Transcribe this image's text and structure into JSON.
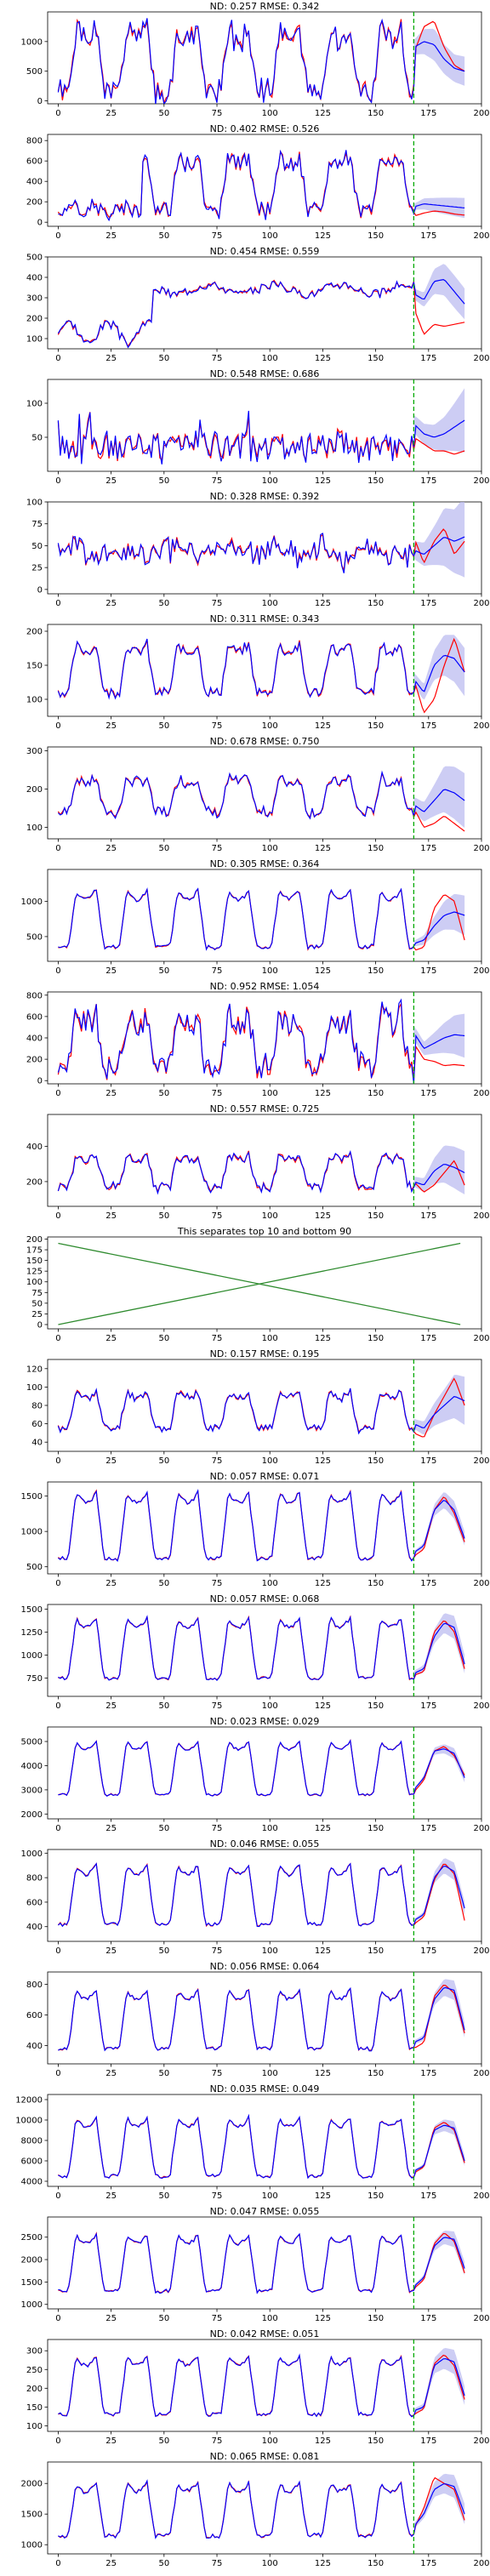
{
  "figure": {
    "background": "#ffffff",
    "colors": {
      "prediction": "#0000ff",
      "actual": "#ff0000",
      "band": "#b8b8f0",
      "divider": "#00aa00",
      "separator_line": "#2e8b2e"
    }
  },
  "chart_data": [
    {
      "type": "line",
      "title": "ND:  0.257 RMSE:  0.342",
      "xlim": [
        -5,
        200
      ],
      "ylim": [
        -50,
        1500
      ],
      "yticks": [
        0,
        500,
        1000
      ],
      "xticks": [
        0,
        25,
        50,
        75,
        100,
        125,
        150,
        175,
        200
      ],
      "cutoff": 168,
      "pattern": "daily",
      "low": 150,
      "high": 1200,
      "noise": 0.18,
      "fc_mean": [
        900,
        1000,
        950,
        700,
        550,
        500
      ],
      "fc_spread": 0.35,
      "actual_fc": [
        800,
        1250,
        1350,
        900,
        600,
        500
      ],
      "seed": 1
    },
    {
      "type": "line",
      "title": "ND:  0.402 RMSE:  0.526",
      "xlim": [
        -5,
        200
      ],
      "ylim": [
        -40,
        860
      ],
      "yticks": [
        0,
        200,
        400,
        600,
        800
      ],
      "xticks": [
        0,
        25,
        50,
        75,
        100,
        125,
        150,
        175,
        200
      ],
      "cutoff": 168,
      "pattern": "daily_late",
      "start_active": 40,
      "low": 120,
      "high": 650,
      "noise": 0.15,
      "fc_mean": [
        150,
        180,
        170,
        160,
        150,
        140
      ],
      "fc_spread": 0.5,
      "actual_fc": [
        60,
        90,
        110,
        100,
        80,
        70
      ],
      "seed": 2
    },
    {
      "type": "line",
      "title": "ND:  0.454 RMSE:  0.559",
      "xlim": [
        -5,
        200
      ],
      "ylim": [
        50,
        500
      ],
      "yticks": [
        100,
        200,
        300,
        400,
        500
      ],
      "xticks": [
        0,
        25,
        50,
        75,
        100,
        125,
        150,
        175,
        200
      ],
      "cutoff": 168,
      "pattern": "level",
      "start_active": 45,
      "low": 130,
      "high": 380,
      "noise": 0.08,
      "fc_mean": [
        320,
        290,
        380,
        390,
        330,
        270
      ],
      "fc_spread": 0.2,
      "actual_fc": [
        250,
        120,
        170,
        160,
        170,
        180
      ],
      "seed": 3
    },
    {
      "type": "line",
      "title": "ND:  0.548 RMSE:  0.686",
      "xlim": [
        -5,
        200
      ],
      "ylim": [
        0,
        135
      ],
      "yticks": [
        50,
        100
      ],
      "xticks": [
        0,
        25,
        50,
        75,
        100,
        125,
        150,
        175,
        200
      ],
      "cutoff": 168,
      "pattern": "spiky",
      "low": 25,
      "high": 80,
      "noise": 0.35,
      "fc_mean": [
        70,
        55,
        50,
        55,
        65,
        75
      ],
      "fc_spread": 0.45,
      "actual_fc": [
        50,
        40,
        30,
        30,
        25,
        30
      ],
      "seed": 4
    },
    {
      "type": "line",
      "title": "ND:  0.328 RMSE:  0.392",
      "xlim": [
        -5,
        200
      ],
      "ylim": [
        -5,
        100
      ],
      "yticks": [
        0,
        25,
        50,
        75,
        100
      ],
      "xticks": [
        0,
        25,
        50,
        75,
        100,
        125,
        150,
        175,
        200
      ],
      "cutoff": 168,
      "pattern": "noisy",
      "low": 30,
      "high": 55,
      "noise": 0.35,
      "fc_mean": [
        45,
        40,
        50,
        60,
        55,
        60
      ],
      "fc_spread": 0.55,
      "actual_fc": [
        60,
        30,
        55,
        70,
        40,
        55
      ],
      "seed": 5
    },
    {
      "type": "line",
      "title": "ND:  0.311 RMSE:  0.343",
      "xlim": [
        -5,
        200
      ],
      "ylim": [
        75,
        210
      ],
      "yticks": [
        100,
        150,
        200
      ],
      "xticks": [
        0,
        25,
        50,
        75,
        100,
        125,
        150,
        175,
        200
      ],
      "cutoff": 168,
      "pattern": "daily",
      "low": 110,
      "high": 180,
      "noise": 0.1,
      "fc_mean": [
        130,
        110,
        150,
        165,
        160,
        140
      ],
      "fc_spread": 0.18,
      "actual_fc": [
        130,
        80,
        100,
        150,
        190,
        140
      ],
      "seed": 6
    },
    {
      "type": "line",
      "title": "ND:  0.678 RMSE:  0.750",
      "xlim": [
        -5,
        200
      ],
      "ylim": [
        70,
        310
      ],
      "yticks": [
        100,
        200,
        300
      ],
      "xticks": [
        0,
        25,
        50,
        75,
        100,
        125,
        150,
        175,
        200
      ],
      "cutoff": 168,
      "pattern": "daily",
      "low": 140,
      "high": 230,
      "noise": 0.15,
      "fc_mean": [
        160,
        140,
        170,
        200,
        190,
        170
      ],
      "fc_spread": 0.3,
      "actual_fc": [
        150,
        100,
        110,
        130,
        110,
        90
      ],
      "seed": 7
    },
    {
      "type": "line",
      "title": "ND:  0.305 RMSE:  0.364",
      "xlim": [
        -5,
        200
      ],
      "ylim": [
        150,
        1450
      ],
      "yticks": [
        500,
        1000
      ],
      "xticks": [
        0,
        25,
        50,
        75,
        100,
        125,
        150,
        175,
        200
      ],
      "cutoff": 168,
      "pattern": "daily_smooth",
      "low": 350,
      "high": 1150,
      "noise": 0.04,
      "fc_mean": [
        400,
        450,
        650,
        800,
        850,
        800
      ],
      "fc_spread": 0.25,
      "actual_fc": [
        300,
        350,
        900,
        1100,
        1000,
        450
      ],
      "seed": 8
    },
    {
      "type": "line",
      "title": "ND:  0.952 RMSE:  1.054",
      "xlim": [
        -5,
        200
      ],
      "ylim": [
        -30,
        830
      ],
      "yticks": [
        0,
        200,
        400,
        600,
        800
      ],
      "xticks": [
        0,
        25,
        50,
        75,
        100,
        125,
        150,
        175,
        200
      ],
      "cutoff": 168,
      "pattern": "daily",
      "low": 120,
      "high": 600,
      "noise": 0.25,
      "fc_mean": [
        450,
        300,
        350,
        400,
        430,
        420
      ],
      "fc_spread": 0.35,
      "actual_fc": [
        350,
        200,
        180,
        140,
        150,
        140
      ],
      "seed": 9
    },
    {
      "type": "line",
      "title": "ND:  0.557 RMSE:  0.725",
      "xlim": [
        -5,
        200
      ],
      "ylim": [
        60,
        580
      ],
      "yticks": [
        200,
        400
      ],
      "xticks": [
        0,
        25,
        50,
        75,
        100,
        125,
        150,
        175,
        200
      ],
      "cutoff": 168,
      "pattern": "daily",
      "low": 170,
      "high": 350,
      "noise": 0.15,
      "fc_mean": [
        200,
        180,
        260,
        300,
        280,
        250
      ],
      "fc_spread": 0.35,
      "actual_fc": [
        200,
        140,
        180,
        250,
        320,
        180
      ],
      "seed": 10
    },
    {
      "type": "line",
      "title": "This separates top 10 and bottom 90",
      "xlim": [
        -5,
        200
      ],
      "ylim": [
        -10,
        205
      ],
      "yticks": [
        0,
        25,
        50,
        75,
        100,
        125,
        150,
        175,
        200
      ],
      "xticks": [
        0,
        25,
        50,
        75,
        100,
        125,
        150,
        175,
        200
      ],
      "separator": true,
      "series": [
        {
          "x": [
            0,
            190
          ],
          "y": [
            190,
            0
          ]
        },
        {
          "x": [
            0,
            190
          ],
          "y": [
            0,
            190
          ]
        }
      ]
    },
    {
      "type": "line",
      "title": "ND:  0.157 RMSE:  0.195",
      "xlim": [
        -5,
        200
      ],
      "ylim": [
        30,
        130
      ],
      "yticks": [
        40,
        60,
        80,
        100,
        120
      ],
      "xticks": [
        0,
        25,
        50,
        75,
        100,
        125,
        150,
        175,
        200
      ],
      "cutoff": 168,
      "pattern": "daily",
      "low": 55,
      "high": 95,
      "noise": 0.1,
      "fc_mean": [
        60,
        55,
        70,
        80,
        90,
        85
      ],
      "fc_spread": 0.22,
      "actual_fc": [
        50,
        45,
        70,
        90,
        110,
        80
      ],
      "seed": 11
    },
    {
      "type": "line",
      "title": "ND:  0.057 RMSE:  0.071",
      "xlim": [
        -5,
        200
      ],
      "ylim": [
        400,
        1700
      ],
      "yticks": [
        500,
        1000,
        1500
      ],
      "xticks": [
        0,
        25,
        50,
        75,
        100,
        125,
        150,
        175,
        200
      ],
      "cutoff": 168,
      "pattern": "daily_clean",
      "low": 620,
      "high": 1550,
      "noise": 0.03,
      "fc_mean": [
        700,
        800,
        1300,
        1450,
        1300,
        900
      ],
      "fc_spread": 0.08,
      "actual_fc": [
        650,
        750,
        1300,
        1500,
        1250,
        850
      ],
      "seed": 12
    },
    {
      "type": "line",
      "title": "ND:  0.057 RMSE:  0.068",
      "xlim": [
        -5,
        200
      ],
      "ylim": [
        550,
        1550
      ],
      "yticks": [
        750,
        1000,
        1250,
        1500
      ],
      "xticks": [
        0,
        25,
        50,
        75,
        100,
        125,
        150,
        175,
        200
      ],
      "cutoff": 168,
      "pattern": "daily_clean",
      "low": 750,
      "high": 1400,
      "noise": 0.03,
      "fc_mean": [
        800,
        850,
        1200,
        1350,
        1300,
        900
      ],
      "fc_spread": 0.08,
      "actual_fc": [
        780,
        820,
        1250,
        1380,
        1250,
        850
      ],
      "seed": 13
    },
    {
      "type": "line",
      "title": "ND:  0.023 RMSE:  0.029",
      "xlim": [
        -5,
        200
      ],
      "ylim": [
        1800,
        5600
      ],
      "yticks": [
        2000,
        3000,
        4000,
        5000
      ],
      "xticks": [
        0,
        25,
        50,
        75,
        100,
        125,
        150,
        175,
        200
      ],
      "cutoff": 168,
      "pattern": "daily_clean",
      "low": 2800,
      "high": 5000,
      "noise": 0.02,
      "fc_mean": [
        3000,
        3500,
        4600,
        4700,
        4500,
        3500
      ],
      "fc_spread": 0.04,
      "actual_fc": [
        2900,
        3400,
        4600,
        4800,
        4400,
        3600
      ],
      "seed": 14
    },
    {
      "type": "line",
      "title": "ND:  0.046 RMSE:  0.055",
      "xlim": [
        -5,
        200
      ],
      "ylim": [
        280,
        1030
      ],
      "yticks": [
        400,
        600,
        800,
        1000
      ],
      "xticks": [
        0,
        25,
        50,
        75,
        100,
        125,
        150,
        175,
        200
      ],
      "cutoff": 168,
      "pattern": "daily_clean",
      "low": 420,
      "high": 900,
      "noise": 0.03,
      "fc_mean": [
        450,
        500,
        800,
        900,
        850,
        550
      ],
      "fc_spread": 0.07,
      "actual_fc": [
        420,
        480,
        780,
        920,
        830,
        450
      ],
      "seed": 15
    },
    {
      "type": "line",
      "title": "ND:  0.056 RMSE:  0.064",
      "xlim": [
        -5,
        200
      ],
      "ylim": [
        280,
        880
      ],
      "yticks": [
        400,
        600,
        800
      ],
      "xticks": [
        0,
        25,
        50,
        75,
        100,
        125,
        150,
        175,
        200
      ],
      "cutoff": 168,
      "pattern": "daily_clean",
      "low": 380,
      "high": 760,
      "noise": 0.03,
      "fc_mean": [
        420,
        450,
        700,
        780,
        760,
        500
      ],
      "fc_spread": 0.07,
      "actual_fc": [
        380,
        420,
        720,
        800,
        740,
        480
      ],
      "seed": 16
    },
    {
      "type": "line",
      "title": "ND:  0.035 RMSE:  0.049",
      "xlim": [
        -5,
        200
      ],
      "ylim": [
        3500,
        12500
      ],
      "yticks": [
        4000,
        6000,
        8000,
        10000,
        12000
      ],
      "xticks": [
        0,
        25,
        50,
        75,
        100,
        125,
        150,
        175,
        200
      ],
      "cutoff": 168,
      "pattern": "daily_clean",
      "low": 4500,
      "high": 10200,
      "noise": 0.03,
      "fc_mean": [
        5000,
        5500,
        9000,
        9500,
        9200,
        6000
      ],
      "fc_spread": 0.06,
      "actual_fc": [
        4800,
        5400,
        9200,
        9800,
        9000,
        5800
      ],
      "seed": 17
    },
    {
      "type": "line",
      "title": "ND:  0.047 RMSE:  0.055",
      "xlim": [
        -5,
        200
      ],
      "ylim": [
        900,
        2950
      ],
      "yticks": [
        1000,
        1500,
        2000,
        2500
      ],
      "xticks": [
        0,
        25,
        50,
        75,
        100,
        125,
        150,
        175,
        200
      ],
      "cutoff": 168,
      "pattern": "daily_clean",
      "low": 1300,
      "high": 2550,
      "noise": 0.03,
      "fc_mean": [
        1400,
        1600,
        2300,
        2500,
        2450,
        1800
      ],
      "fc_spread": 0.06,
      "actual_fc": [
        1350,
        1550,
        2350,
        2600,
        2400,
        1700
      ],
      "seed": 18
    },
    {
      "type": "line",
      "title": "ND:  0.042 RMSE:  0.051",
      "xlim": [
        -5,
        200
      ],
      "ylim": [
        85,
        330
      ],
      "yticks": [
        100,
        150,
        200,
        250,
        300
      ],
      "xticks": [
        0,
        25,
        50,
        75,
        100,
        125,
        150,
        175,
        200
      ],
      "cutoff": 168,
      "pattern": "daily_clean",
      "low": 130,
      "high": 285,
      "noise": 0.03,
      "fc_mean": [
        140,
        150,
        260,
        280,
        270,
        180
      ],
      "fc_spread": 0.1,
      "actual_fc": [
        130,
        145,
        265,
        290,
        260,
        170
      ],
      "seed": 19
    },
    {
      "type": "line",
      "title": "ND:  0.065 RMSE:  0.081",
      "xlim": [
        -5,
        200
      ],
      "ylim": [
        850,
        2350
      ],
      "yticks": [
        1000,
        1500,
        2000
      ],
      "xticks": [
        0,
        25,
        50,
        75,
        100,
        125,
        150,
        175,
        200
      ],
      "cutoff": 168,
      "pattern": "daily_clean",
      "low": 1150,
      "high": 2000,
      "noise": 0.04,
      "fc_mean": [
        1300,
        1500,
        1900,
        2000,
        1950,
        1500
      ],
      "fc_spread": 0.08,
      "actual_fc": [
        1250,
        1600,
        2100,
        2000,
        1900,
        1400
      ],
      "seed": 20
    }
  ]
}
